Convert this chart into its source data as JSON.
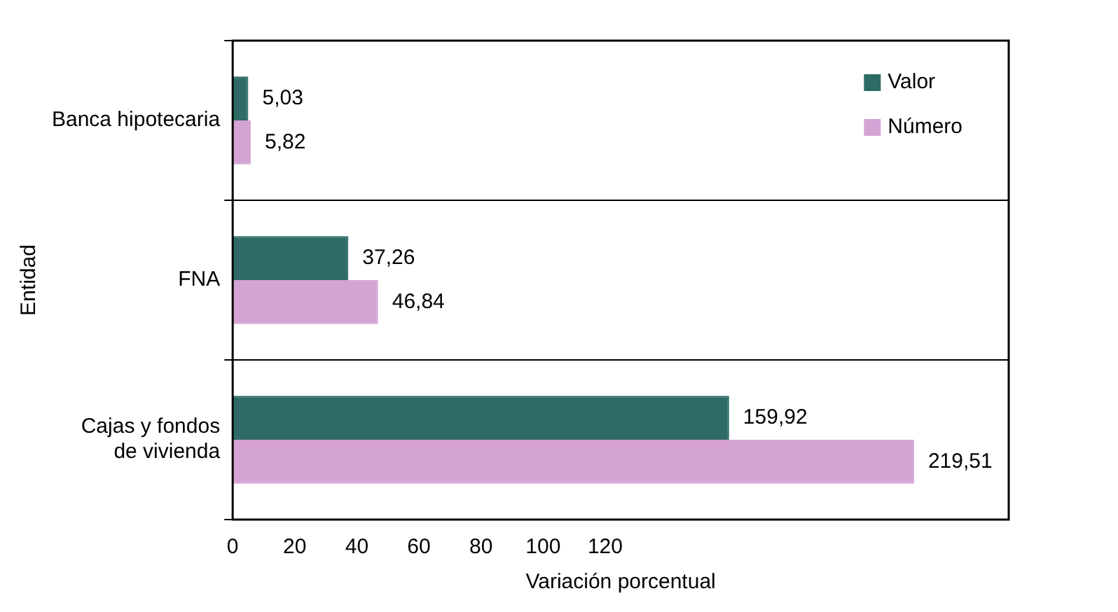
{
  "chart_data": {
    "type": "bar",
    "orientation": "horizontal",
    "xlabel": "Variación porcentual",
    "ylabel": "Entidad",
    "categories": [
      "Banca hipotecaria",
      "FNA",
      "Cajas y fondos de vivienda"
    ],
    "series": [
      {
        "name": "Valor",
        "color": "#2e6b66",
        "values": [
          5.03,
          37.26,
          159.92
        ],
        "value_labels": [
          "5,03",
          "37,26",
          "159,92"
        ]
      },
      {
        "name": "Número",
        "color": "#d4a3d4",
        "values": [
          5.82,
          46.84,
          219.51
        ],
        "value_labels": [
          "5,82",
          "46,84",
          "219,51"
        ]
      }
    ],
    "xlim": [
      0,
      250
    ],
    "xticks": [
      0,
      20,
      40,
      60,
      80,
      100,
      120
    ],
    "grid": "y",
    "legend": "top right"
  }
}
